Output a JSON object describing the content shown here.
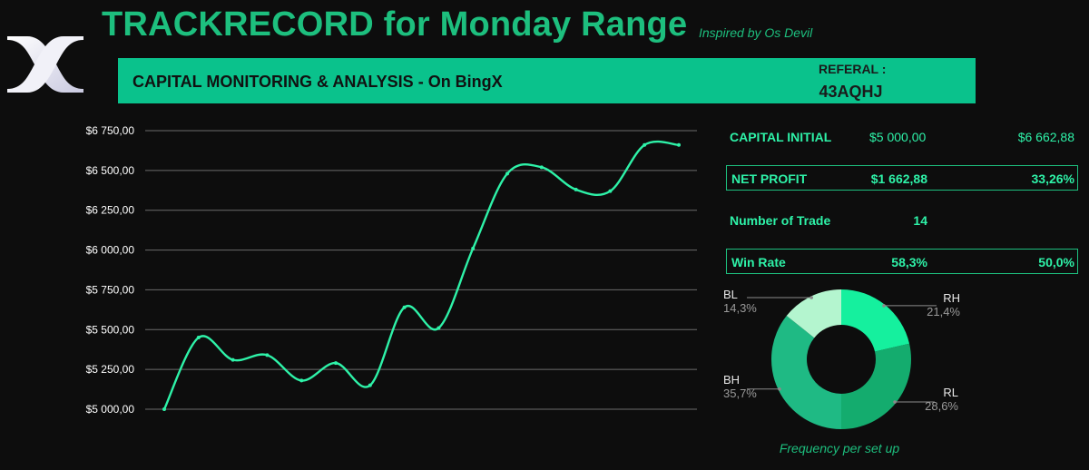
{
  "header": {
    "title": "TRACKRECORD for Monday Range",
    "subtitle": "Inspired by Os Devil"
  },
  "banner": {
    "text": "CAPITAL MONITORING & ANALYSIS - On BingX",
    "referral_label": "REFERAL :",
    "referral_code": "43AQHJ"
  },
  "stats": {
    "capital_initial_label": "CAPITAL INITIAL",
    "capital_initial_value": "$5 000,00",
    "capital_current_value": "$6 662,88",
    "net_profit_label": "NET PROFIT",
    "net_profit_value": "$1 662,88",
    "net_profit_pct": "33,26%",
    "trades_label": "Number of Trade",
    "trades_value": "14",
    "winrate_label": "Win Rate",
    "winrate_value": "58,3%",
    "winrate_value_2": "50,0%"
  },
  "chart_data": [
    {
      "type": "line",
      "title": "",
      "ylim": [
        5000,
        6750
      ],
      "yticks": [
        "$5 000,00",
        "$5 250,00",
        "$5 500,00",
        "$5 750,00",
        "$6 000,00",
        "$6 250,00",
        "$6 500,00",
        "$6 750,00"
      ],
      "ytick_values": [
        5000,
        5250,
        5500,
        5750,
        6000,
        6250,
        6500,
        6750
      ],
      "x": [
        0,
        1,
        2,
        3,
        4,
        5,
        6,
        7,
        8,
        9,
        10,
        11,
        12,
        13,
        14,
        15
      ],
      "y": [
        5000,
        5450,
        5310,
        5340,
        5180,
        5290,
        5150,
        5640,
        5510,
        6010,
        6480,
        6520,
        6380,
        6370,
        6660,
        6660
      ],
      "color": "#2ef2a8",
      "grid": true
    },
    {
      "type": "pie",
      "caption": "Frequency per set up",
      "slices": [
        {
          "label": "RH",
          "pct": "21,4%",
          "value": 21.4,
          "color": "#15f09e"
        },
        {
          "label": "RL",
          "pct": "28,6%",
          "value": 28.6,
          "color": "#14ac6e"
        },
        {
          "label": "BH",
          "pct": "35,7%",
          "value": 35.7,
          "color": "#1fba84"
        },
        {
          "label": "BL",
          "pct": "14,3%",
          "value": 14.3,
          "color": "#b4f5cf"
        }
      ]
    }
  ],
  "colors": {
    "accent": "#1dbf7e",
    "banner": "#0ac28c",
    "line": "#2ef2a8",
    "background": "#0d0d0d"
  },
  "icons": {
    "logo": "bingx-logo-icon"
  }
}
